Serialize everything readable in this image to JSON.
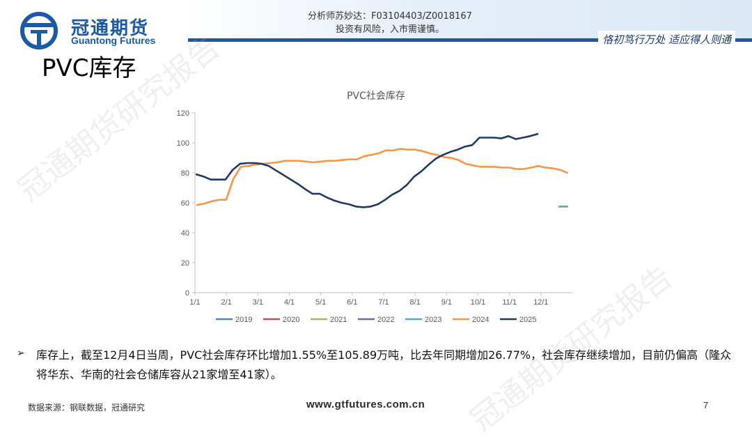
{
  "header": {
    "logo_cn": "冠通期货",
    "logo_en": "Guantong Futures",
    "analyst_line": "分析师苏妙达：F03104403/Z0018167",
    "risk_line": "投资有风险，入市需谨慎。",
    "motto": "恪初笃行万处  适应得人则通"
  },
  "page_title": "PVC库存",
  "watermark": "冠通期货研究报告",
  "bullet": "库存上，截至12月4日当周，PVC社会库存环比增加1.55%至105.89万吨，比去年同期增加26.77%，社会库存继续增加，目前仍偏高（隆众将华东、华南的社会仓储库容从21家增至41家）。",
  "footer": {
    "source": "数据来源：钢联数据，冠通研究",
    "website": "www.gtfutures.com.cn",
    "page_number": "7"
  },
  "colors": {
    "brand": "#1b5aa6",
    "s2019": "#4a86c5",
    "s2020": "#c0504d",
    "s2021": "#9bbb59",
    "s2022": "#8064a2",
    "s2023": "#4bacc6",
    "s2024": "#f79646",
    "s2025": "#1f3864"
  },
  "chart_data": {
    "type": "line",
    "title": "PVC社会库存",
    "xlabel": "",
    "ylabel": "",
    "x_tick_labels": [
      "1/1",
      "2/1",
      "3/1",
      "4/1",
      "5/1",
      "6/1",
      "7/1",
      "8/1",
      "9/1",
      "10/1",
      "11/1",
      "12/1"
    ],
    "x_range": [
      0,
      52
    ],
    "ylim": [
      0,
      120
    ],
    "y_ticks": [
      0,
      20,
      40,
      60,
      80,
      100,
      120
    ],
    "grid": false,
    "legend_position": "bottom",
    "series": [
      {
        "name": "2019",
        "color": "#4a86c5",
        "points": []
      },
      {
        "name": "2020",
        "color": "#c0504d",
        "points": []
      },
      {
        "name": "2021",
        "color": "#9bbb59",
        "points": []
      },
      {
        "name": "2022",
        "color": "#8064a2",
        "points": []
      },
      {
        "name": "2023",
        "color": "#4bacc6",
        "points": [
          [
            50.2,
            57.5
          ],
          [
            51.3,
            57.5
          ]
        ]
      },
      {
        "name": "2024",
        "color": "#f79646",
        "points": [
          [
            0.3,
            58.5
          ],
          [
            1.3,
            59.5
          ],
          [
            2.3,
            61
          ],
          [
            3.3,
            62
          ],
          [
            4.3,
            62
          ],
          [
            5.3,
            76
          ],
          [
            6.3,
            84
          ],
          [
            7.3,
            84.5
          ],
          [
            8.3,
            85.5
          ],
          [
            9.3,
            86
          ],
          [
            10.3,
            86.5
          ],
          [
            11.3,
            87
          ],
          [
            12.3,
            88
          ],
          [
            13.3,
            88
          ],
          [
            14.3,
            88
          ],
          [
            15.3,
            87.5
          ],
          [
            16.3,
            87
          ],
          [
            17.3,
            87.5
          ],
          [
            18.3,
            88
          ],
          [
            19.3,
            88
          ],
          [
            20.3,
            88.5
          ],
          [
            21.3,
            89
          ],
          [
            22.3,
            89
          ],
          [
            23.3,
            91
          ],
          [
            24.3,
            92
          ],
          [
            25.3,
            93
          ],
          [
            26.3,
            95
          ],
          [
            27.3,
            95
          ],
          [
            28.3,
            96
          ],
          [
            29.3,
            95.5
          ],
          [
            30.3,
            95.5
          ],
          [
            31.3,
            94.5
          ],
          [
            32.3,
            93
          ],
          [
            33.3,
            92
          ],
          [
            34.3,
            90.5
          ],
          [
            35.3,
            90
          ],
          [
            36.3,
            88.5
          ],
          [
            37.3,
            86
          ],
          [
            38.3,
            85
          ],
          [
            39.3,
            84
          ],
          [
            40.3,
            84
          ],
          [
            41.3,
            84
          ],
          [
            42.3,
            83.5
          ],
          [
            43.3,
            83.5
          ],
          [
            44.3,
            82.5
          ],
          [
            45.3,
            82.5
          ],
          [
            46.3,
            83.5
          ],
          [
            47.3,
            84.5
          ],
          [
            48.3,
            83.5
          ],
          [
            49.3,
            83
          ],
          [
            50.3,
            82
          ],
          [
            51.3,
            80
          ]
        ]
      },
      {
        "name": "2025",
        "color": "#1f3864",
        "points": [
          [
            0.2,
            79
          ],
          [
            1.2,
            77.5
          ],
          [
            2.2,
            75.5
          ],
          [
            3.2,
            75.5
          ],
          [
            4.2,
            75.5
          ],
          [
            5.2,
            82
          ],
          [
            6.2,
            86
          ],
          [
            7.2,
            86.5
          ],
          [
            8.2,
            86.5
          ],
          [
            9.2,
            86
          ],
          [
            10.2,
            84.5
          ],
          [
            11.2,
            81.5
          ],
          [
            12.2,
            78.5
          ],
          [
            13.2,
            75.5
          ],
          [
            14.2,
            72.5
          ],
          [
            15.2,
            69
          ],
          [
            16.2,
            66
          ],
          [
            17.2,
            66
          ],
          [
            18.2,
            63.5
          ],
          [
            19.2,
            61.5
          ],
          [
            20.2,
            60
          ],
          [
            21.2,
            59
          ],
          [
            22.2,
            57.5
          ],
          [
            23.2,
            57
          ],
          [
            24.2,
            57.5
          ],
          [
            25.2,
            59
          ],
          [
            26.2,
            62
          ],
          [
            27.2,
            65.5
          ],
          [
            28.2,
            68
          ],
          [
            29.2,
            72
          ],
          [
            30.2,
            77.5
          ],
          [
            31.2,
            81
          ],
          [
            32.2,
            85.5
          ],
          [
            33.2,
            89.5
          ],
          [
            34.2,
            92
          ],
          [
            35.2,
            94
          ],
          [
            36.2,
            95.5
          ],
          [
            37.2,
            97.5
          ],
          [
            38.2,
            98.5
          ],
          [
            39.2,
            103.5
          ],
          [
            40.2,
            103.5
          ],
          [
            41.2,
            103.5
          ],
          [
            42.2,
            103
          ],
          [
            43.2,
            104.5
          ],
          [
            44.2,
            102.5
          ],
          [
            45.2,
            103.5
          ],
          [
            46.2,
            104.5
          ],
          [
            47.2,
            105.9
          ]
        ]
      }
    ]
  }
}
